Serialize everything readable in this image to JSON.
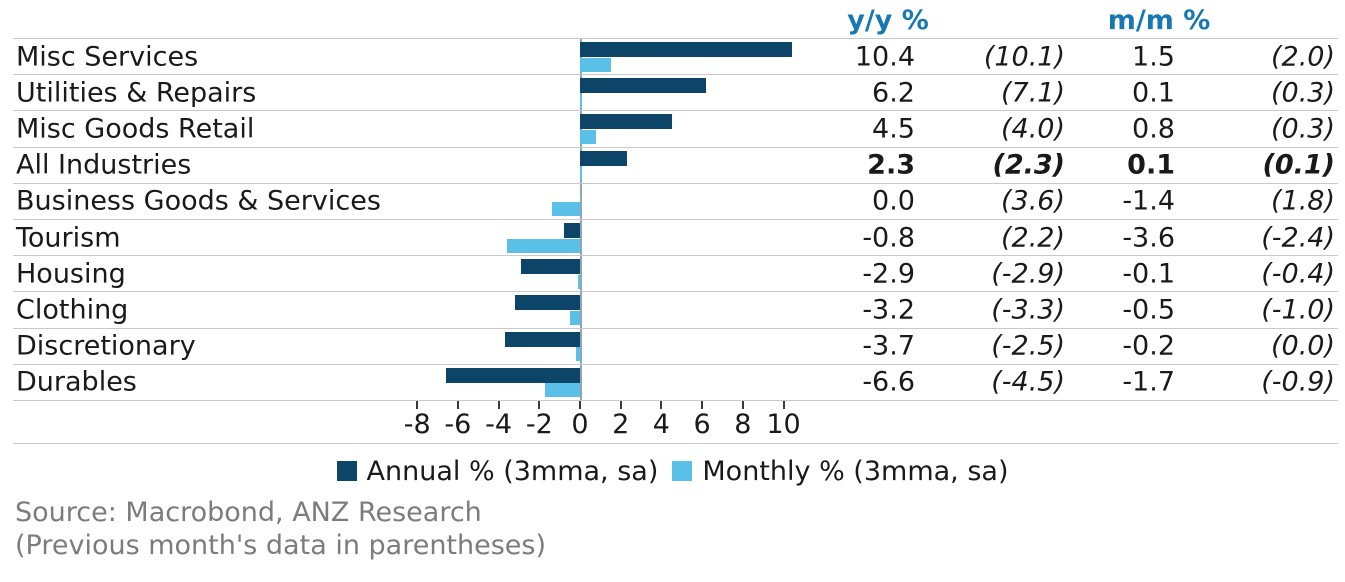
{
  "header": {
    "yy_label": "y/y %",
    "mm_label": "m/m %"
  },
  "chart_data": {
    "type": "bar",
    "orientation": "horizontal",
    "categories": [
      "Misc Services",
      "Utilities & Repairs",
      "Misc Goods Retail",
      "All Industries",
      "Business Goods & Services",
      "Tourism",
      "Housing",
      "Clothing",
      "Discretionary",
      "Durables"
    ],
    "series": [
      {
        "name": "Annual % (3mma, sa)",
        "color": "#0D4569",
        "values": [
          10.4,
          6.2,
          4.5,
          2.3,
          0.0,
          -0.8,
          -2.9,
          -3.2,
          -3.7,
          -6.6
        ]
      },
      {
        "name": "Monthly % (3mma, sa)",
        "color": "#5BC0E7",
        "values": [
          1.5,
          0.1,
          0.8,
          0.1,
          -1.4,
          -3.6,
          -0.1,
          -0.5,
          -0.2,
          -1.7
        ]
      }
    ],
    "x_ticks": [
      -8,
      -6,
      -4,
      -2,
      0,
      2,
      4,
      6,
      8,
      10
    ],
    "xlim": [
      -8.9,
      10.9
    ],
    "grid": "zero-line-only",
    "legend_position": "bottom-center",
    "bold_category": "All Industries"
  },
  "table": {
    "rows": [
      {
        "label": "Misc Services",
        "yy": "10.4",
        "yy_prev": "(10.1)",
        "mm": "1.5",
        "mm_prev": "(2.0)",
        "bold": false
      },
      {
        "label": "Utilities & Repairs",
        "yy": "6.2",
        "yy_prev": "(7.1)",
        "mm": "0.1",
        "mm_prev": "(0.3)",
        "bold": false
      },
      {
        "label": "Misc Goods Retail",
        "yy": "4.5",
        "yy_prev": "(4.0)",
        "mm": "0.8",
        "mm_prev": "(0.3)",
        "bold": false
      },
      {
        "label": "All Industries",
        "yy": "2.3",
        "yy_prev": "(2.3)",
        "mm": "0.1",
        "mm_prev": "(0.1)",
        "bold": true
      },
      {
        "label": "Business Goods & Services",
        "yy": "0.0",
        "yy_prev": "(3.6)",
        "mm": "-1.4",
        "mm_prev": "(1.8)",
        "bold": false
      },
      {
        "label": "Tourism",
        "yy": "-0.8",
        "yy_prev": "(2.2)",
        "mm": "-3.6",
        "mm_prev": "(-2.4)",
        "bold": false
      },
      {
        "label": "Housing",
        "yy": "-2.9",
        "yy_prev": "(-2.9)",
        "mm": "-0.1",
        "mm_prev": "(-0.4)",
        "bold": false
      },
      {
        "label": "Clothing",
        "yy": "-3.2",
        "yy_prev": "(-3.3)",
        "mm": "-0.5",
        "mm_prev": "(-1.0)",
        "bold": false
      },
      {
        "label": "Discretionary",
        "yy": "-3.7",
        "yy_prev": "(-2.5)",
        "mm": "-0.2",
        "mm_prev": "(0.0)",
        "bold": false
      },
      {
        "label": "Durables",
        "yy": "-6.6",
        "yy_prev": "(-4.5)",
        "mm": "-1.7",
        "mm_prev": "(-0.9)",
        "bold": false
      }
    ]
  },
  "colors": {
    "annual_bar": "#0D4569",
    "monthly_bar": "#5BC0E7",
    "header_text": "#1878B4",
    "divider": "#C9C9C9",
    "zero_line": "#8FA6B6",
    "source_text": "#7C7C7C"
  },
  "footer": {
    "source": "Source: Macrobond, ANZ Research",
    "note": "(Previous month's data in parentheses)"
  }
}
